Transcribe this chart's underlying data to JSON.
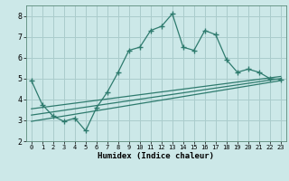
{
  "xlabel": "Humidex (Indice chaleur)",
  "bg_color": "#cce8e8",
  "grid_color": "#aacccc",
  "line_color": "#2e7b6e",
  "xlim": [
    -0.5,
    23.5
  ],
  "ylim": [
    2.0,
    8.5
  ],
  "xticks": [
    0,
    1,
    2,
    3,
    4,
    5,
    6,
    7,
    8,
    9,
    10,
    11,
    12,
    13,
    14,
    15,
    16,
    17,
    18,
    19,
    20,
    21,
    22,
    23
  ],
  "yticks": [
    2,
    3,
    4,
    5,
    6,
    7,
    8
  ],
  "zigzag_x": [
    0,
    1,
    2,
    3,
    4,
    5,
    6,
    7,
    8,
    9,
    10,
    11,
    12,
    13,
    14,
    15,
    16,
    17,
    18,
    19,
    20,
    21,
    22,
    23
  ],
  "zigzag_y": [
    4.9,
    3.75,
    3.2,
    2.95,
    3.1,
    2.5,
    3.6,
    4.35,
    5.3,
    6.35,
    6.5,
    7.3,
    7.5,
    8.1,
    6.5,
    6.35,
    7.3,
    7.1,
    5.9,
    5.3,
    5.45,
    5.3,
    5.0,
    4.95
  ],
  "line1_x": [
    0,
    23
  ],
  "line1_y": [
    2.95,
    4.9
  ],
  "line2_x": [
    0,
    23
  ],
  "line2_y": [
    3.25,
    5.0
  ],
  "line3_x": [
    0,
    23
  ],
  "line3_y": [
    3.55,
    5.1
  ]
}
